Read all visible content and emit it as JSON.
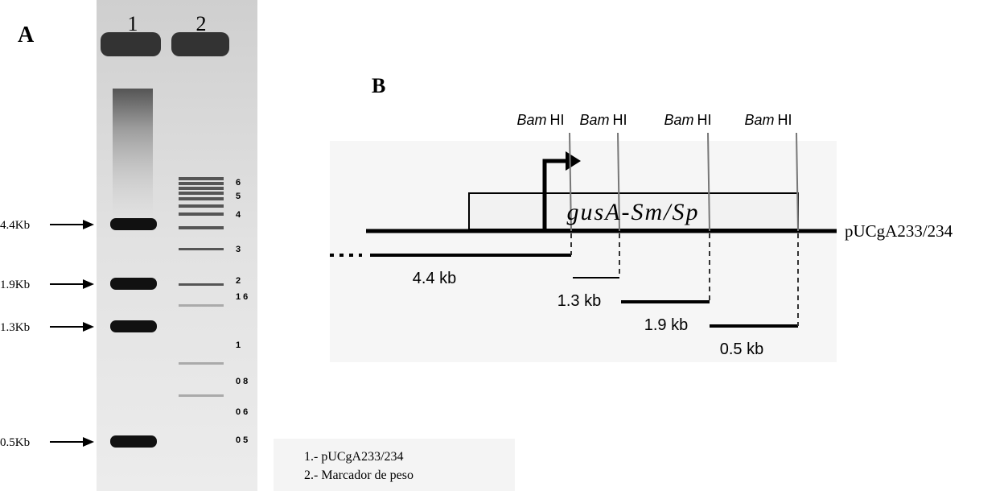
{
  "panel_a": {
    "label": "A",
    "lanes": [
      "1",
      "2"
    ],
    "sample_bands": [
      "4.4Kb",
      "1.9Kb",
      "1.3Kb",
      "0.5Kb"
    ],
    "marker_labels": [
      "6",
      "5",
      "4",
      "3",
      "2",
      "1 6",
      "1",
      "0 8",
      "0 6",
      "0 5"
    ],
    "legend": [
      "1.- pUCgA233/234",
      "2.- Marcador de peso"
    ]
  },
  "panel_b": {
    "label": "B",
    "sites": [
      {
        "enzyme": "Bam",
        "suffix": "HI"
      },
      {
        "enzyme": "Bam",
        "suffix": "HI"
      },
      {
        "enzyme": "Bam",
        "suffix": "HI"
      },
      {
        "enzyme": "Bam",
        "suffix": "HI"
      }
    ],
    "gene": "gusA-Sm/Sp",
    "plasmid": "pUCgA233/234",
    "fragments": [
      "4.4 kb",
      "1.3 kb",
      "1.9 kb",
      "0.5 kb"
    ]
  }
}
